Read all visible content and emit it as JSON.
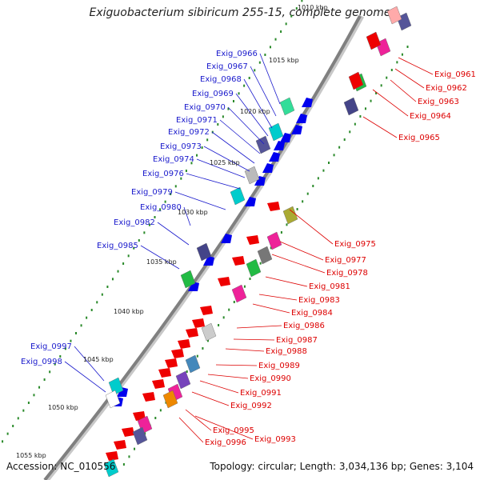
{
  "title": "Exiguobacterium sibiricum 255-15, complete genome",
  "footer": {
    "accession": "Accession: NC_010556",
    "summary": "Topology: circular; Length: 3,034,136 bp; Genes: 3,104"
  },
  "colors": {
    "leftLabel": "#1a1acc",
    "rightLabel": "#dd0000",
    "backbone": "#808080",
    "tick": "#2a8a2a",
    "blueGene": "#0000ee",
    "redGene": "#ee0000"
  },
  "scale_labels": [
    "1010 kbp",
    "1015 kbp",
    "1020 kbp",
    "1025 kbp",
    "1030 kbp",
    "1035 kbp",
    "1040 kbp",
    "1045 kbp",
    "1050 kbp",
    "1055 kbp"
  ],
  "left_genes": [
    "Exig_0966",
    "Exig_0967",
    "Exig_0968",
    "Exig_0969",
    "Exig_0970",
    "Exig_0971",
    "Exig_0972",
    "Exig_0973",
    "Exig_0974",
    "Exig_0976",
    "Exig_0979",
    "Exig_0980",
    "Exig_0982",
    "Exig_0985",
    "Exig_0997",
    "Exig_0998"
  ],
  "right_genes": [
    "Exig_0961",
    "Exig_0962",
    "Exig_0963",
    "Exig_0964",
    "Exig_0965",
    "Exig_0975",
    "Exig_0977",
    "Exig_0978",
    "Exig_0981",
    "Exig_0983",
    "Exig_0984",
    "Exig_0986",
    "Exig_0987",
    "Exig_0988",
    "Exig_0989",
    "Exig_0990",
    "Exig_0991",
    "Exig_0992",
    "Exig_0995",
    "Exig_0993",
    "Exig_0996"
  ]
}
